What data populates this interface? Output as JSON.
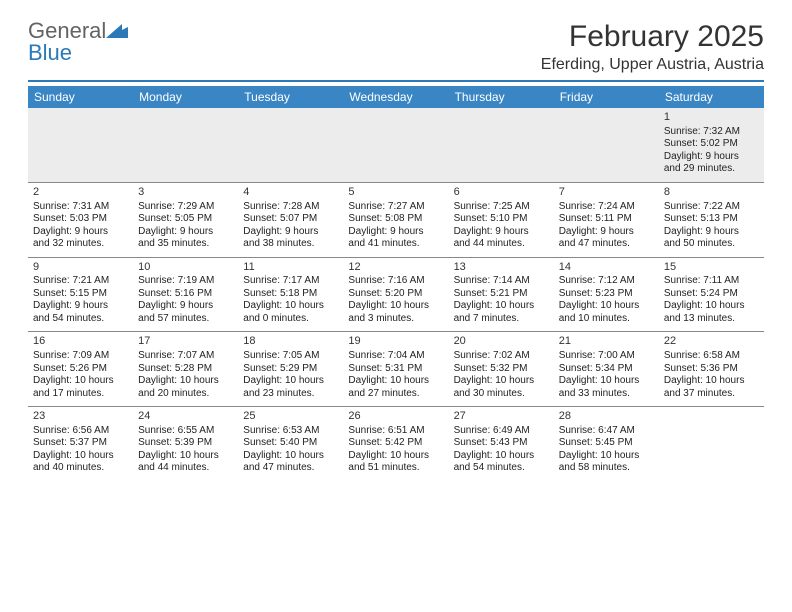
{
  "brand": {
    "general": "General",
    "blue": "Blue"
  },
  "header": {
    "title": "February 2025",
    "location": "Eferding, Upper Austria, Austria"
  },
  "dow": [
    "Sunday",
    "Monday",
    "Tuesday",
    "Wednesday",
    "Thursday",
    "Friday",
    "Saturday"
  ],
  "colors": {
    "header_bar": "#3a85c4",
    "rule": "#2a79b8",
    "logo_gray": "#636363",
    "logo_blue": "#2a79b8",
    "empty_bg": "#ececec",
    "cell_border": "#888888",
    "background": "#ffffff"
  },
  "typography": {
    "title_fontsize": 30,
    "location_fontsize": 16,
    "dow_fontsize": 12,
    "cell_fontsize": 10,
    "logo_fontsize": 22
  },
  "calendar": {
    "type": "month-grid",
    "columns": 7,
    "weeks": [
      [
        null,
        null,
        null,
        null,
        null,
        null,
        {
          "n": "1",
          "sr": "Sunrise: 7:32 AM",
          "ss": "Sunset: 5:02 PM",
          "d1": "Daylight: 9 hours",
          "d2": "and 29 minutes."
        }
      ],
      [
        {
          "n": "2",
          "sr": "Sunrise: 7:31 AM",
          "ss": "Sunset: 5:03 PM",
          "d1": "Daylight: 9 hours",
          "d2": "and 32 minutes."
        },
        {
          "n": "3",
          "sr": "Sunrise: 7:29 AM",
          "ss": "Sunset: 5:05 PM",
          "d1": "Daylight: 9 hours",
          "d2": "and 35 minutes."
        },
        {
          "n": "4",
          "sr": "Sunrise: 7:28 AM",
          "ss": "Sunset: 5:07 PM",
          "d1": "Daylight: 9 hours",
          "d2": "and 38 minutes."
        },
        {
          "n": "5",
          "sr": "Sunrise: 7:27 AM",
          "ss": "Sunset: 5:08 PM",
          "d1": "Daylight: 9 hours",
          "d2": "and 41 minutes."
        },
        {
          "n": "6",
          "sr": "Sunrise: 7:25 AM",
          "ss": "Sunset: 5:10 PM",
          "d1": "Daylight: 9 hours",
          "d2": "and 44 minutes."
        },
        {
          "n": "7",
          "sr": "Sunrise: 7:24 AM",
          "ss": "Sunset: 5:11 PM",
          "d1": "Daylight: 9 hours",
          "d2": "and 47 minutes."
        },
        {
          "n": "8",
          "sr": "Sunrise: 7:22 AM",
          "ss": "Sunset: 5:13 PM",
          "d1": "Daylight: 9 hours",
          "d2": "and 50 minutes."
        }
      ],
      [
        {
          "n": "9",
          "sr": "Sunrise: 7:21 AM",
          "ss": "Sunset: 5:15 PM",
          "d1": "Daylight: 9 hours",
          "d2": "and 54 minutes."
        },
        {
          "n": "10",
          "sr": "Sunrise: 7:19 AM",
          "ss": "Sunset: 5:16 PM",
          "d1": "Daylight: 9 hours",
          "d2": "and 57 minutes."
        },
        {
          "n": "11",
          "sr": "Sunrise: 7:17 AM",
          "ss": "Sunset: 5:18 PM",
          "d1": "Daylight: 10 hours",
          "d2": "and 0 minutes."
        },
        {
          "n": "12",
          "sr": "Sunrise: 7:16 AM",
          "ss": "Sunset: 5:20 PM",
          "d1": "Daylight: 10 hours",
          "d2": "and 3 minutes."
        },
        {
          "n": "13",
          "sr": "Sunrise: 7:14 AM",
          "ss": "Sunset: 5:21 PM",
          "d1": "Daylight: 10 hours",
          "d2": "and 7 minutes."
        },
        {
          "n": "14",
          "sr": "Sunrise: 7:12 AM",
          "ss": "Sunset: 5:23 PM",
          "d1": "Daylight: 10 hours",
          "d2": "and 10 minutes."
        },
        {
          "n": "15",
          "sr": "Sunrise: 7:11 AM",
          "ss": "Sunset: 5:24 PM",
          "d1": "Daylight: 10 hours",
          "d2": "and 13 minutes."
        }
      ],
      [
        {
          "n": "16",
          "sr": "Sunrise: 7:09 AM",
          "ss": "Sunset: 5:26 PM",
          "d1": "Daylight: 10 hours",
          "d2": "and 17 minutes."
        },
        {
          "n": "17",
          "sr": "Sunrise: 7:07 AM",
          "ss": "Sunset: 5:28 PM",
          "d1": "Daylight: 10 hours",
          "d2": "and 20 minutes."
        },
        {
          "n": "18",
          "sr": "Sunrise: 7:05 AM",
          "ss": "Sunset: 5:29 PM",
          "d1": "Daylight: 10 hours",
          "d2": "and 23 minutes."
        },
        {
          "n": "19",
          "sr": "Sunrise: 7:04 AM",
          "ss": "Sunset: 5:31 PM",
          "d1": "Daylight: 10 hours",
          "d2": "and 27 minutes."
        },
        {
          "n": "20",
          "sr": "Sunrise: 7:02 AM",
          "ss": "Sunset: 5:32 PM",
          "d1": "Daylight: 10 hours",
          "d2": "and 30 minutes."
        },
        {
          "n": "21",
          "sr": "Sunrise: 7:00 AM",
          "ss": "Sunset: 5:34 PM",
          "d1": "Daylight: 10 hours",
          "d2": "and 33 minutes."
        },
        {
          "n": "22",
          "sr": "Sunrise: 6:58 AM",
          "ss": "Sunset: 5:36 PM",
          "d1": "Daylight: 10 hours",
          "d2": "and 37 minutes."
        }
      ],
      [
        {
          "n": "23",
          "sr": "Sunrise: 6:56 AM",
          "ss": "Sunset: 5:37 PM",
          "d1": "Daylight: 10 hours",
          "d2": "and 40 minutes."
        },
        {
          "n": "24",
          "sr": "Sunrise: 6:55 AM",
          "ss": "Sunset: 5:39 PM",
          "d1": "Daylight: 10 hours",
          "d2": "and 44 minutes."
        },
        {
          "n": "25",
          "sr": "Sunrise: 6:53 AM",
          "ss": "Sunset: 5:40 PM",
          "d1": "Daylight: 10 hours",
          "d2": "and 47 minutes."
        },
        {
          "n": "26",
          "sr": "Sunrise: 6:51 AM",
          "ss": "Sunset: 5:42 PM",
          "d1": "Daylight: 10 hours",
          "d2": "and 51 minutes."
        },
        {
          "n": "27",
          "sr": "Sunrise: 6:49 AM",
          "ss": "Sunset: 5:43 PM",
          "d1": "Daylight: 10 hours",
          "d2": "and 54 minutes."
        },
        {
          "n": "28",
          "sr": "Sunrise: 6:47 AM",
          "ss": "Sunset: 5:45 PM",
          "d1": "Daylight: 10 hours",
          "d2": "and 58 minutes."
        },
        null
      ]
    ]
  }
}
